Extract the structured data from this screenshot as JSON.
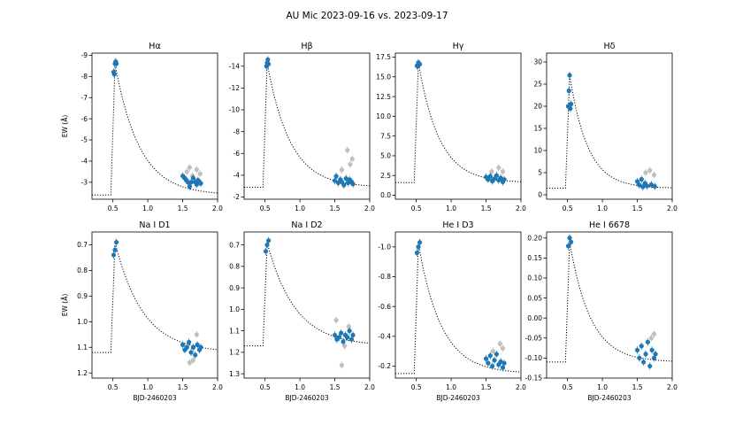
{
  "figure": {
    "suptitle": "AU Mic 2023-09-16 vs. 2023-09-17",
    "colors": {
      "primary": "#1f77b4",
      "secondary": "#c0c0c0",
      "model": "#000000"
    }
  },
  "chart_data": [
    {
      "type": "scatter",
      "title": "Hα",
      "xlabel": "",
      "ylabel": "EW (Å)",
      "invert_y": true,
      "xlim": [
        0.2,
        2.0
      ],
      "ylim": [
        -2.2,
        -9.1
      ],
      "xticks": [
        "0.5",
        "1.0",
        "1.5",
        "2.0"
      ],
      "xtick_values": [
        0.5,
        1.0,
        1.5,
        2.0
      ],
      "yticks": [
        "-9",
        "-8",
        "-7",
        "-6",
        "-5",
        "-4",
        "-3"
      ],
      "ytick_values": [
        -9,
        -8,
        -7,
        -6,
        -5,
        -4,
        -3
      ],
      "model": {
        "baseline": -2.4,
        "peak": -8.6,
        "t_rise": 0.47,
        "t_peak": 0.53,
        "decay": 0.35
      },
      "flare_points": [
        [
          0.51,
          -8.2
        ],
        [
          0.52,
          -8.1
        ],
        [
          0.53,
          -8.6
        ],
        [
          0.54,
          -8.7
        ],
        [
          0.55,
          -8.6
        ]
      ],
      "late_points": [
        [
          1.5,
          -3.3
        ],
        [
          1.53,
          -3.2
        ],
        [
          1.55,
          -3.1
        ],
        [
          1.58,
          -3.0
        ],
        [
          1.6,
          -2.8
        ],
        [
          1.62,
          -3.0
        ],
        [
          1.65,
          -3.2
        ],
        [
          1.68,
          -3.0
        ],
        [
          1.7,
          -2.9
        ],
        [
          1.72,
          -3.1
        ],
        [
          1.74,
          -3.0
        ],
        [
          1.76,
          -2.95
        ]
      ],
      "gray_points": [
        [
          1.56,
          -3.5
        ],
        [
          1.6,
          -3.7
        ],
        [
          1.64,
          -3.3
        ],
        [
          1.7,
          -3.6
        ],
        [
          1.75,
          -3.4
        ]
      ]
    },
    {
      "type": "scatter",
      "title": "Hβ",
      "xlabel": "",
      "ylabel": "",
      "invert_y": true,
      "xlim": [
        0.2,
        2.0
      ],
      "ylim": [
        -1.8,
        -15.2
      ],
      "xticks": [
        "0.5",
        "1.0",
        "1.5",
        "2.0"
      ],
      "xtick_values": [
        0.5,
        1.0,
        1.5,
        2.0
      ],
      "yticks": [
        "-14",
        "-12",
        "-10",
        "-8",
        "-6",
        "-4",
        "-2"
      ],
      "ytick_values": [
        -14,
        -12,
        -10,
        -8,
        -6,
        -4,
        -2
      ],
      "model": {
        "baseline": -2.9,
        "peak": -14.3,
        "t_rise": 0.47,
        "t_peak": 0.53,
        "decay": 0.33
      },
      "flare_points": [
        [
          0.52,
          -14.0
        ],
        [
          0.53,
          -14.3
        ],
        [
          0.54,
          -14.6
        ],
        [
          0.55,
          -14.2
        ]
      ],
      "late_points": [
        [
          1.5,
          -3.5
        ],
        [
          1.52,
          -3.9
        ],
        [
          1.55,
          -3.3
        ],
        [
          1.58,
          -3.6
        ],
        [
          1.6,
          -3.4
        ],
        [
          1.63,
          -3.1
        ],
        [
          1.66,
          -3.7
        ],
        [
          1.69,
          -3.3
        ],
        [
          1.71,
          -3.6
        ],
        [
          1.74,
          -3.4
        ],
        [
          1.76,
          -3.2
        ]
      ],
      "gray_points": [
        [
          1.6,
          -4.5
        ],
        [
          1.68,
          -6.3
        ],
        [
          1.72,
          -5.0
        ],
        [
          1.75,
          -5.5
        ]
      ]
    },
    {
      "type": "scatter",
      "title": "Hγ",
      "xlabel": "",
      "ylabel": "",
      "invert_y": false,
      "xlim": [
        0.2,
        2.0
      ],
      "ylim": [
        -0.5,
        18.0
      ],
      "xticks": [
        "0.5",
        "1.0",
        "1.5",
        "2.0"
      ],
      "xtick_values": [
        0.5,
        1.0,
        1.5,
        2.0
      ],
      "yticks": [
        "0.0",
        "2.5",
        "5.0",
        "7.5",
        "10.0",
        "12.5",
        "15.0",
        "17.5"
      ],
      "ytick_values": [
        0,
        2.5,
        5,
        7.5,
        10,
        12.5,
        15,
        17.5
      ],
      "model": {
        "baseline": 1.6,
        "peak": 16.8,
        "t_rise": 0.47,
        "t_peak": 0.53,
        "decay": 0.3
      },
      "flare_points": [
        [
          0.51,
          16.4
        ],
        [
          0.53,
          16.8
        ],
        [
          0.55,
          16.6
        ]
      ],
      "late_points": [
        [
          1.5,
          2.3
        ],
        [
          1.53,
          2.0
        ],
        [
          1.56,
          2.4
        ],
        [
          1.59,
          1.8
        ],
        [
          1.62,
          2.1
        ],
        [
          1.65,
          2.5
        ],
        [
          1.68,
          1.9
        ],
        [
          1.71,
          2.2
        ],
        [
          1.74,
          1.7
        ],
        [
          1.76,
          2.0
        ]
      ],
      "gray_points": [
        [
          1.58,
          3.0
        ],
        [
          1.68,
          3.5
        ],
        [
          1.74,
          3.0
        ]
      ]
    },
    {
      "type": "scatter",
      "title": "Hδ",
      "xlabel": "",
      "ylabel": "",
      "invert_y": false,
      "xlim": [
        0.2,
        2.0
      ],
      "ylim": [
        -1.0,
        32.0
      ],
      "xticks": [
        "0.5",
        "1.0",
        "1.5",
        "2.0"
      ],
      "xtick_values": [
        0.5,
        1.0,
        1.5,
        2.0
      ],
      "yticks": [
        "0",
        "5",
        "10",
        "15",
        "20",
        "25",
        "30"
      ],
      "ytick_values": [
        0,
        5,
        10,
        15,
        20,
        25,
        30
      ],
      "model": {
        "baseline": 1.5,
        "peak": 27,
        "t_rise": 0.47,
        "t_peak": 0.53,
        "decay": 0.26
      },
      "flare_points": [
        [
          0.51,
          20.0
        ],
        [
          0.52,
          23.5
        ],
        [
          0.53,
          27.0
        ],
        [
          0.54,
          19.5
        ],
        [
          0.55,
          20.5
        ]
      ],
      "late_points": [
        [
          1.5,
          3.0
        ],
        [
          1.53,
          2.2
        ],
        [
          1.56,
          3.5
        ],
        [
          1.58,
          1.8
        ],
        [
          1.61,
          2.6
        ],
        [
          1.64,
          2.0
        ],
        [
          1.7,
          2.3
        ],
        [
          1.75,
          1.9
        ]
      ],
      "gray_points": [
        [
          1.62,
          5.0
        ],
        [
          1.68,
          5.5
        ],
        [
          1.74,
          4.5
        ]
      ]
    },
    {
      "type": "scatter",
      "title": "Na I D1",
      "xlabel": "BJD-2460203",
      "ylabel": "EW (Å)",
      "invert_y": true,
      "xlim": [
        0.2,
        2.0
      ],
      "ylim": [
        1.22,
        0.65
      ],
      "xticks": [
        "0.5",
        "1.0",
        "1.5",
        "2.0"
      ],
      "xtick_values": [
        0.5,
        1.0,
        1.5,
        2.0
      ],
      "yticks": [
        "0.7",
        "0.8",
        "0.9",
        "1.0",
        "1.1",
        "1.2"
      ],
      "ytick_values": [
        0.7,
        0.8,
        0.9,
        1.0,
        1.1,
        1.2
      ],
      "model": {
        "baseline": 1.12,
        "peak": 0.69,
        "t_rise": 0.47,
        "t_peak": 0.53,
        "decay": 0.4
      },
      "flare_points": [
        [
          0.51,
          0.74
        ],
        [
          0.53,
          0.72
        ],
        [
          0.55,
          0.69
        ]
      ],
      "late_points": [
        [
          1.5,
          1.09
        ],
        [
          1.53,
          1.11
        ],
        [
          1.56,
          1.1
        ],
        [
          1.59,
          1.08
        ],
        [
          1.62,
          1.12
        ],
        [
          1.65,
          1.1
        ],
        [
          1.68,
          1.13
        ],
        [
          1.71,
          1.09
        ],
        [
          1.74,
          1.11
        ],
        [
          1.76,
          1.1
        ]
      ],
      "gray_points": [
        [
          1.6,
          1.16
        ],
        [
          1.65,
          1.15
        ],
        [
          1.7,
          1.05
        ]
      ]
    },
    {
      "type": "scatter",
      "title": "Na I D2",
      "xlabel": "BJD-2460203",
      "ylabel": "",
      "invert_y": true,
      "xlim": [
        0.2,
        2.0
      ],
      "ylim": [
        1.32,
        0.64
      ],
      "xticks": [
        "0.5",
        "1.0",
        "1.5",
        "2.0"
      ],
      "xtick_values": [
        0.5,
        1.0,
        1.5,
        2.0
      ],
      "yticks": [
        "0.7",
        "0.8",
        "0.9",
        "1.0",
        "1.1",
        "1.2",
        "1.3"
      ],
      "ytick_values": [
        0.7,
        0.8,
        0.9,
        1.0,
        1.1,
        1.2,
        1.3
      ],
      "model": {
        "baseline": 1.17,
        "peak": 0.69,
        "t_rise": 0.47,
        "t_peak": 0.53,
        "decay": 0.4
      },
      "flare_points": [
        [
          0.51,
          0.73
        ],
        [
          0.53,
          0.7
        ],
        [
          0.55,
          0.68
        ]
      ],
      "late_points": [
        [
          1.5,
          1.12
        ],
        [
          1.53,
          1.14
        ],
        [
          1.56,
          1.13
        ],
        [
          1.59,
          1.11
        ],
        [
          1.62,
          1.15
        ],
        [
          1.65,
          1.12
        ],
        [
          1.68,
          1.13
        ],
        [
          1.71,
          1.1
        ],
        [
          1.74,
          1.14
        ],
        [
          1.76,
          1.12
        ]
      ],
      "gray_points": [
        [
          1.52,
          1.05
        ],
        [
          1.6,
          1.26
        ],
        [
          1.64,
          1.17
        ],
        [
          1.7,
          1.08
        ]
      ]
    },
    {
      "type": "scatter",
      "title": "He I D3",
      "xlabel": "BJD-2460203",
      "ylabel": "",
      "invert_y": true,
      "xlim": [
        0.2,
        2.0
      ],
      "ylim": [
        -0.12,
        -1.1
      ],
      "xticks": [
        "0.5",
        "1.0",
        "1.5",
        "2.0"
      ],
      "xtick_values": [
        0.5,
        1.0,
        1.5,
        2.0
      ],
      "yticks": [
        "-1.0",
        "-0.8",
        "-0.6",
        "-0.4",
        "-0.2"
      ],
      "ytick_values": [
        -1.0,
        -0.8,
        -0.6,
        -0.4,
        -0.2
      ],
      "model": {
        "baseline": -0.15,
        "peak": -1.02,
        "t_rise": 0.47,
        "t_peak": 0.53,
        "decay": 0.33
      },
      "flare_points": [
        [
          0.51,
          -0.96
        ],
        [
          0.53,
          -1.0
        ],
        [
          0.55,
          -1.03
        ]
      ],
      "late_points": [
        [
          1.5,
          -0.25
        ],
        [
          1.53,
          -0.22
        ],
        [
          1.56,
          -0.27
        ],
        [
          1.59,
          -0.2
        ],
        [
          1.62,
          -0.24
        ],
        [
          1.65,
          -0.28
        ],
        [
          1.68,
          -0.21
        ],
        [
          1.71,
          -0.23
        ],
        [
          1.74,
          -0.19
        ],
        [
          1.76,
          -0.22
        ]
      ],
      "gray_points": [
        [
          1.6,
          -0.3
        ],
        [
          1.7,
          -0.35
        ],
        [
          1.74,
          -0.32
        ]
      ]
    },
    {
      "type": "scatter",
      "title": "He I 6678",
      "xlabel": "BJD-2460203",
      "ylabel": "",
      "invert_y": true,
      "xlim": [
        0.2,
        2.0
      ],
      "ylim": [
        -0.15,
        0.215
      ],
      "xticks": [
        "0.5",
        "1.0",
        "1.5",
        "2.0"
      ],
      "xtick_values": [
        0.5,
        1.0,
        1.5,
        2.0
      ],
      "yticks": [
        "0.20",
        "0.15",
        "0.10",
        "0.05",
        "0.00",
        "-0.05",
        "-0.10",
        "-0.15"
      ],
      "ytick_values": [
        0.2,
        0.15,
        0.1,
        0.05,
        0.0,
        -0.05,
        -0.1,
        -0.15
      ],
      "model": {
        "baseline": -0.11,
        "peak": 0.19,
        "t_rise": 0.47,
        "t_peak": 0.53,
        "decay": 0.3
      },
      "flare_points": [
        [
          0.51,
          0.18
        ],
        [
          0.53,
          0.2
        ],
        [
          0.55,
          0.19
        ]
      ],
      "late_points": [
        [
          1.5,
          -0.08
        ],
        [
          1.53,
          -0.1
        ],
        [
          1.56,
          -0.07
        ],
        [
          1.59,
          -0.11
        ],
        [
          1.62,
          -0.09
        ],
        [
          1.65,
          -0.06
        ],
        [
          1.68,
          -0.12
        ],
        [
          1.71,
          -0.08
        ],
        [
          1.74,
          -0.1
        ],
        [
          1.76,
          -0.09
        ]
      ],
      "gray_points": [
        [
          1.7,
          -0.05
        ],
        [
          1.74,
          -0.04
        ]
      ]
    }
  ]
}
